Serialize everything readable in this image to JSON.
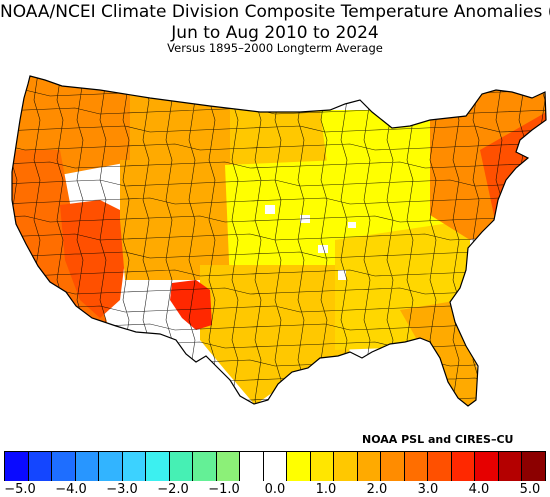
{
  "header": {
    "title_line1": "NOAA/NCEI Climate Division Composite Temperature Anomalies (F)",
    "title_line2": "Jun to Aug 2010 to 2024",
    "title_line3": "Versus 1895–2000 Longterm Average"
  },
  "credit": "NOAA PSL and CIRES–CU",
  "legend": {
    "colors": [
      "#0a0aff",
      "#1446ff",
      "#1e6eff",
      "#2896ff",
      "#32b4ff",
      "#3cd2ff",
      "#3cf0f0",
      "#46f0b4",
      "#64f096",
      "#8cf078",
      "#ffffff",
      "#ffffff",
      "#ffff00",
      "#ffe600",
      "#ffc800",
      "#ffaa00",
      "#ff8c00",
      "#ff6e00",
      "#ff5000",
      "#ff2800",
      "#e60000",
      "#b40000",
      "#8c0000"
    ],
    "ticks": [
      "−5.0",
      "−4.0",
      "−3.0",
      "−2.0",
      "−1.0",
      "0.0",
      "1.0",
      "2.0",
      "3.0",
      "4.0",
      "5.0"
    ]
  },
  "map": {
    "regions": [
      {
        "name": "pacific-northwest",
        "color": "#ff8c00"
      },
      {
        "name": "california-coast",
        "color": "#ff6e00"
      },
      {
        "name": "desert-southwest",
        "color": "#ff5000"
      },
      {
        "name": "four-corners",
        "color": "#ffaa00"
      },
      {
        "name": "northern-rockies",
        "color": "#ffaa00"
      },
      {
        "name": "northern-plains",
        "color": "#ffc800"
      },
      {
        "name": "central-plains",
        "color": "#ffff00"
      },
      {
        "name": "midwest",
        "color": "#ffff00"
      },
      {
        "name": "texas",
        "color": "#ffc800"
      },
      {
        "name": "southeast",
        "color": "#ffd700"
      },
      {
        "name": "florida",
        "color": "#ffaa00"
      },
      {
        "name": "northeast",
        "color": "#ff8c00"
      },
      {
        "name": "new-england-coast",
        "color": "#ff5000"
      },
      {
        "name": "new-mexico-hotspot",
        "color": "#ff2800"
      }
    ]
  }
}
